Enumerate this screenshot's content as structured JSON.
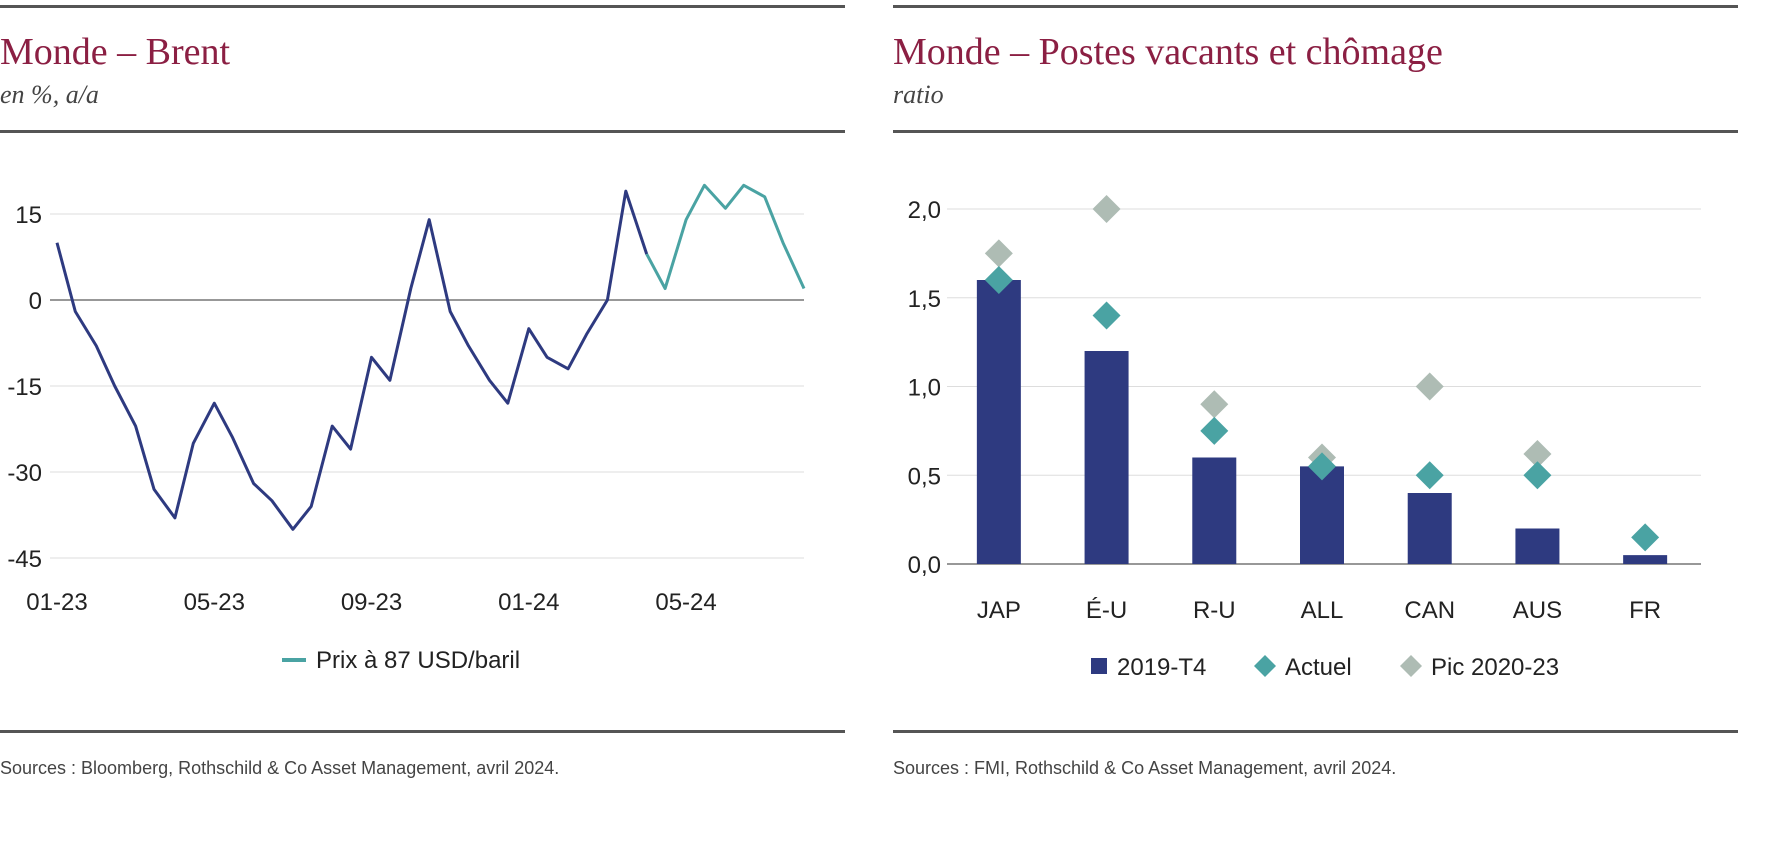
{
  "colors": {
    "title": "#8b1f43",
    "navy": "#2e3a80",
    "teal": "#4aa3a3",
    "grey": "#aebcb4",
    "zero_line": "#777777",
    "grid": "#dddddd"
  },
  "left": {
    "title": "Monde – Brent",
    "subtitle": "en %, a/a",
    "source": "Sources : Bloomberg, Rothschild & Co Asset Management, avril 2024."
  },
  "right": {
    "title": "Monde – Postes vacants et chômage",
    "subtitle": "ratio",
    "source": "Sources : FMI, Rothschild & Co Asset Management, avril 2024."
  },
  "chart_data": [
    {
      "type": "line",
      "title": "Monde – Brent",
      "subtitle": "en %, a/a",
      "ylim": [
        -45,
        20
      ],
      "yticks": [
        15,
        0,
        -15,
        -30,
        -45
      ],
      "ytick_labels": [
        "15",
        "0",
        "-15",
        "-30",
        "-45"
      ],
      "x_tick_labels": [
        "01-23",
        "05-23",
        "09-23",
        "01-24",
        "05-24"
      ],
      "xlim": [
        "2023-01",
        "2024-08"
      ],
      "grid": true,
      "legend_position": "bottom",
      "series": [
        {
          "name": "",
          "color": "#2e3a80",
          "x": [
            "2023-01",
            "2023-01-15",
            "2023-02",
            "2023-02-15",
            "2023-03",
            "2023-03-15",
            "2023-04",
            "2023-04-15",
            "2023-05",
            "2023-05-15",
            "2023-06",
            "2023-06-15",
            "2023-07",
            "2023-07-15",
            "2023-08",
            "2023-08-15",
            "2023-09",
            "2023-09-15",
            "2023-10",
            "2023-10-15",
            "2023-11",
            "2023-11-15",
            "2023-12",
            "2023-12-15",
            "2024-01",
            "2024-01-15",
            "2024-02",
            "2024-02-15",
            "2024-03",
            "2024-03-15",
            "2024-04"
          ],
          "values": [
            10,
            -2,
            -8,
            -15,
            -22,
            -33,
            -38,
            -25,
            -18,
            -24,
            -32,
            -35,
            -40,
            -36,
            -22,
            -26,
            -10,
            -14,
            2,
            14,
            -2,
            -8,
            -14,
            -18,
            -5,
            -10,
            -12,
            -6,
            0,
            19,
            8
          ]
        },
        {
          "name": "Prix à 87 USD/baril",
          "color": "#4aa3a3",
          "x": [
            "2024-04",
            "2024-04-15",
            "2024-05",
            "2024-05-15",
            "2024-06",
            "2024-06-15",
            "2024-07",
            "2024-07-15",
            "2024-08"
          ],
          "values": [
            8,
            2,
            14,
            20,
            16,
            20,
            18,
            10,
            2
          ]
        }
      ]
    },
    {
      "type": "bar",
      "title": "Monde – Postes vacants et chômage",
      "subtitle": "ratio",
      "categories": [
        "JAP",
        "É-U",
        "R-U",
        "ALL",
        "CAN",
        "AUS",
        "FR"
      ],
      "ylim": [
        0,
        2.0
      ],
      "yticks": [
        2.0,
        1.5,
        1.0,
        0.5,
        0.0
      ],
      "ytick_labels": [
        "2,0",
        "1,5",
        "1,0",
        "0,5",
        "0,0"
      ],
      "grid": true,
      "legend_position": "bottom",
      "series": [
        {
          "name": "2019-T4",
          "kind": "bar",
          "color": "#2e3a80",
          "values": [
            1.6,
            1.2,
            0.6,
            0.55,
            0.4,
            0.2,
            0.05
          ]
        },
        {
          "name": "Actuel",
          "kind": "diamond",
          "color": "#4aa3a3",
          "values": [
            1.6,
            1.4,
            0.75,
            0.55,
            0.5,
            0.5,
            0.15
          ]
        },
        {
          "name": "Pic 2020-23",
          "kind": "diamond",
          "color": "#aebcb4",
          "values": [
            1.75,
            2.0,
            0.9,
            0.6,
            1.0,
            0.62,
            null
          ]
        }
      ]
    }
  ]
}
